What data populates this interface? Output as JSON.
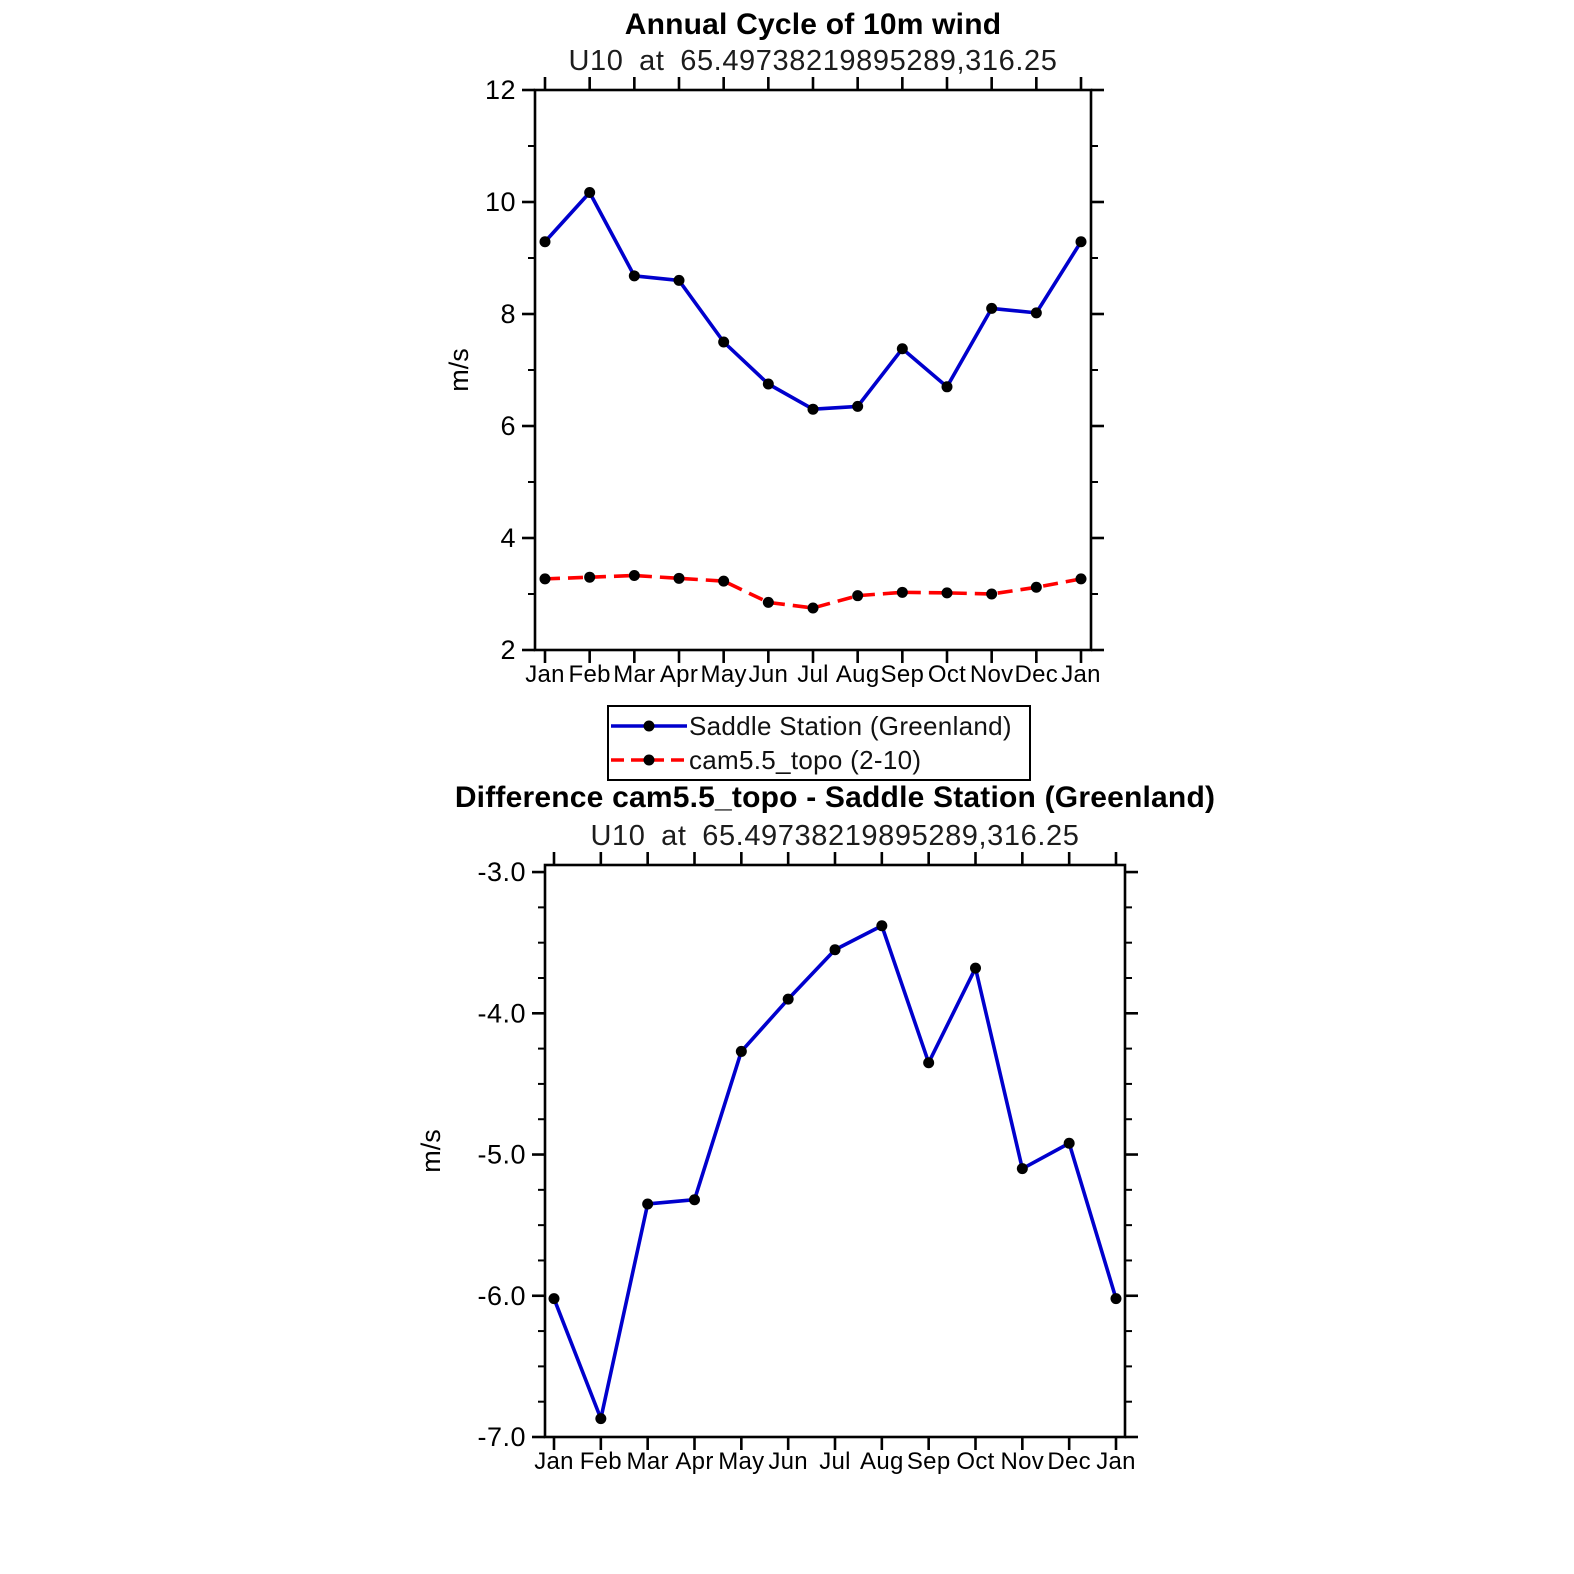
{
  "figure": {
    "background": "#ffffff",
    "line_blue": "#0000cd",
    "line_red": "#ff0000",
    "marker_color": "#000000",
    "axis_color": "#000000"
  },
  "chart_data": [
    {
      "type": "line",
      "title": "Annual Cycle of 10m wind",
      "subtitle": "U10 at 65.49738219895289,316.25",
      "ylabel": "m/s",
      "xlabel": "",
      "ylim": [
        2,
        12
      ],
      "yticks": [
        2,
        4,
        6,
        8,
        10,
        12
      ],
      "ytick_labels": [
        "2",
        "4",
        "6",
        "8",
        "10",
        "12"
      ],
      "yminor": [
        3,
        5,
        7,
        9,
        11
      ],
      "categories": [
        "Jan",
        "Feb",
        "Mar",
        "Apr",
        "May",
        "Jun",
        "Jul",
        "Aug",
        "Sep",
        "Oct",
        "Nov",
        "Dec",
        "Jan"
      ],
      "grid": false,
      "legend_position": "below-plot",
      "series": [
        {
          "name": "Saddle Station (Greenland)",
          "color": "#0000cd",
          "line_style": "solid",
          "marker": "filled-circle",
          "marker_color": "#000000",
          "values": [
            9.29,
            10.17,
            8.68,
            8.6,
            7.5,
            6.75,
            6.3,
            6.35,
            7.38,
            6.7,
            8.1,
            8.02,
            9.29
          ]
        },
        {
          "name": "cam5.5_topo (2-10)",
          "color": "#ff0000",
          "line_style": "dashed",
          "marker": "filled-circle",
          "marker_color": "#000000",
          "values": [
            3.27,
            3.3,
            3.33,
            3.28,
            3.23,
            2.85,
            2.75,
            2.97,
            3.03,
            3.02,
            3.0,
            3.12,
            3.27
          ]
        }
      ]
    },
    {
      "type": "line",
      "title": "Difference cam5.5_topo - Saddle Station (Greenland)",
      "subtitle": "U10 at 65.49738219895289,316.25",
      "ylabel": "m/s",
      "xlabel": "",
      "ylim": [
        -7.0,
        -2.95
      ],
      "yticks": [
        -3.0,
        -4.0,
        -5.0,
        -6.0,
        -7.0
      ],
      "ytick_labels": [
        "-3.0",
        "-4.0",
        "-5.0",
        "-6.0",
        "-7.0"
      ],
      "yminor": [
        -3.25,
        -3.5,
        -3.75,
        -4.25,
        -4.5,
        -4.75,
        -5.25,
        -5.5,
        -5.75,
        -6.25,
        -6.5,
        -6.75
      ],
      "categories": [
        "Jan",
        "Feb",
        "Mar",
        "Apr",
        "May",
        "Jun",
        "Jul",
        "Aug",
        "Sep",
        "Oct",
        "Nov",
        "Dec",
        "Jan"
      ],
      "grid": false,
      "series": [
        {
          "color": "#0000cd",
          "line_style": "solid",
          "marker": "filled-circle",
          "marker_color": "#000000",
          "values": [
            -6.02,
            -6.87,
            -5.35,
            -5.32,
            -4.27,
            -3.9,
            -3.55,
            -3.38,
            -4.35,
            -3.68,
            -5.1,
            -4.92,
            -6.02
          ]
        }
      ]
    }
  ]
}
